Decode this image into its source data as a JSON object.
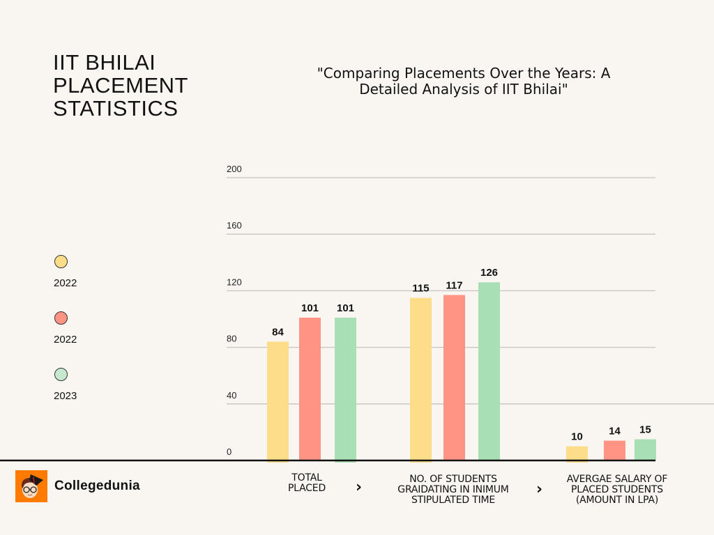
{
  "header": {
    "title_lines": [
      "IIT BHILAI",
      "PLACEMENT",
      "STATISTICS"
    ],
    "subtitle_lines": [
      "\"Comparing Placements Over the Years: A",
      "Detailed Analysis of IIT Bhilai\""
    ]
  },
  "legend": {
    "items": [
      {
        "label": "2022",
        "color": "#fddd8a"
      },
      {
        "label": "2022",
        "color": "#ff9485"
      },
      {
        "label": "2023",
        "color": "#c6e8cf"
      }
    ]
  },
  "brand": {
    "name": "Collegedunia",
    "logo_color": "#ff7b00"
  },
  "chart_data": {
    "type": "bar",
    "title": "\"Comparing Placements Over the Years: A Detailed Analysis of IIT Bhilai\"",
    "xlabel": "",
    "ylabel": "",
    "ylim": [
      0,
      200
    ],
    "yticks": [
      0,
      40,
      80,
      120,
      160,
      200
    ],
    "grid": true,
    "legend_position": "left",
    "categories": [
      [
        "TOTAL",
        "PLACED"
      ],
      [
        "NO. OF STUDENTS",
        "GRAIDATING IN INIMUM",
        "STIPULATED TIME"
      ],
      [
        "AVERGAE SALARY OF",
        "PLACED STUDENTS",
        "(AMOUNT IN LPA)"
      ]
    ],
    "series": [
      {
        "name": "2022",
        "color": "#fddd8a",
        "values": [
          84,
          115,
          10
        ]
      },
      {
        "name": "2022",
        "color": "#ff9485",
        "values": [
          101,
          117,
          14
        ]
      },
      {
        "name": "2023",
        "color": "#a8dfb4",
        "values": [
          101,
          126,
          15
        ]
      }
    ]
  },
  "separators": [
    "›",
    "›"
  ]
}
